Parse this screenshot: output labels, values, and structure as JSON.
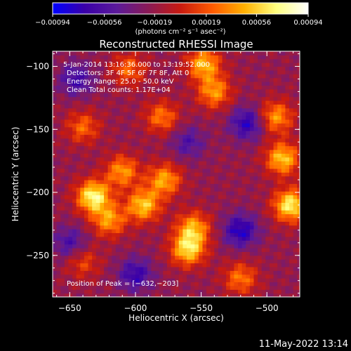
{
  "chart_data": {
    "type": "heatmap",
    "title": "Reconstructed RHESSI Image",
    "xlabel": "Heliocentric X (arcsec)",
    "ylabel": "Heliocentric Y (arcsec)",
    "xlim": [
      -663,
      -475
    ],
    "ylim": [
      -283,
      -88
    ],
    "xticks": [
      -650,
      -600,
      -550,
      -500
    ],
    "xtick_labels": [
      "−650",
      "−600",
      "−550",
      "−500"
    ],
    "yticks": [
      -100,
      -150,
      -200,
      -250
    ],
    "ytick_labels": [
      "−100",
      "−150",
      "−200",
      "−250"
    ],
    "colorbar": {
      "range": [
        -0.00094,
        0.00094
      ],
      "ticks": [
        -0.00094,
        -0.00056,
        -0.00019,
        0.00019,
        0.00056,
        0.00094
      ],
      "tick_labels": [
        "−0.00094",
        "−0.00056",
        "−0.00019",
        "0.00019",
        "0.00056",
        "0.00094"
      ],
      "unit_label": "(photons cm⁻² s⁻¹ asec⁻²)",
      "colors": [
        "#0000ff",
        "#3a00a8",
        "#5b1a9a",
        "#8a1a55",
        "#c81a10",
        "#ff5a00",
        "#ffb000",
        "#ffff80",
        "#ffffff"
      ]
    },
    "annotations": [
      "5-Jan-2014 13:16:36.000 to 13:19:52.000",
      "Detectors: 3F 4F 5F 6F 7F 8F, Att 0",
      "Energy Range: 25.0 - 50.0 keV",
      "Clean    Total counts: 1.17E+04"
    ],
    "peak_label": "Position of Peak = [−632,−203]",
    "peak": [
      -632,
      -203
    ],
    "sources": [
      {
        "x": -632,
        "y": -203,
        "amp": 0.00094
      },
      {
        "x": -620,
        "y": -222,
        "amp": 0.0006
      },
      {
        "x": -594,
        "y": -210,
        "amp": 0.00075
      },
      {
        "x": -578,
        "y": -190,
        "amp": 0.00065
      },
      {
        "x": -610,
        "y": -183,
        "amp": 0.0006
      },
      {
        "x": -560,
        "y": -245,
        "amp": 0.0008
      },
      {
        "x": -556,
        "y": -228,
        "amp": 0.00065
      },
      {
        "x": -482,
        "y": -210,
        "amp": 0.0009
      },
      {
        "x": -488,
        "y": -173,
        "amp": 0.00075
      },
      {
        "x": -493,
        "y": -140,
        "amp": 0.0006
      },
      {
        "x": -540,
        "y": -120,
        "amp": 0.0006
      },
      {
        "x": -548,
        "y": -98,
        "amp": 0.0007
      },
      {
        "x": -580,
        "y": -140,
        "amp": 0.0005
      },
      {
        "x": -640,
        "y": -148,
        "amp": 0.00045
      },
      {
        "x": -605,
        "y": -102,
        "amp": 0.00045
      },
      {
        "x": -520,
        "y": -268,
        "amp": 0.0005
      },
      {
        "x": -640,
        "y": -255,
        "amp": 0.00035
      },
      {
        "x": -600,
        "y": -265,
        "amp": -0.0005
      },
      {
        "x": -645,
        "y": -110,
        "amp": -0.00045
      },
      {
        "x": -520,
        "y": -230,
        "amp": -0.0006
      },
      {
        "x": -515,
        "y": -145,
        "amp": -0.00055
      },
      {
        "x": -650,
        "y": -240,
        "amp": -0.0004
      },
      {
        "x": -560,
        "y": -160,
        "amp": -0.00035
      }
    ]
  },
  "footer": {
    "timestamp": "11-May-2022 13:14"
  }
}
